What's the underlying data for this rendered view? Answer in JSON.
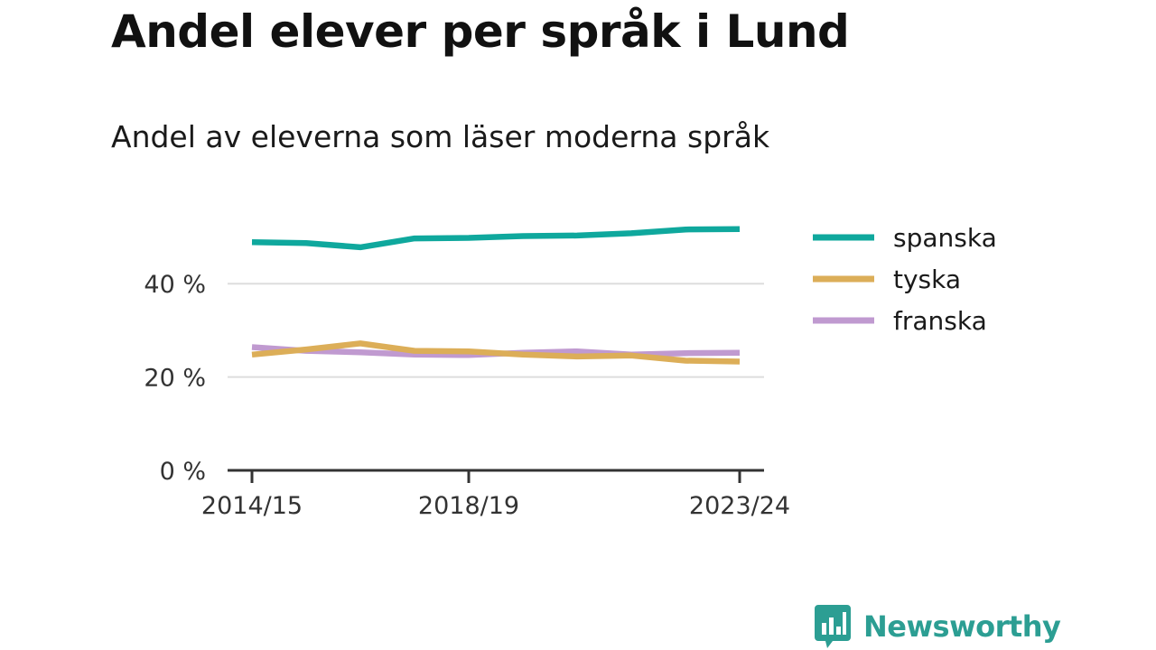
{
  "chart_data": {
    "type": "line",
    "title": "Andel elever per språk i Lund",
    "subtitle": "Andel av eleverna som läser moderna språk",
    "xlabel": "",
    "ylabel": "",
    "x": [
      "2014/15",
      "2015/16",
      "2016/17",
      "2017/18",
      "2018/19",
      "2019/20",
      "2020/21",
      "2021/22",
      "2022/23",
      "2023/24"
    ],
    "x_tick_labels": [
      "2014/15",
      "2018/19",
      "2023/24"
    ],
    "y_tick_labels": [
      "0 %",
      "20 %",
      "40 %"
    ],
    "y_ticks": [
      0,
      20,
      40
    ],
    "ylim": [
      0,
      50
    ],
    "grid": true,
    "legend_position": "right",
    "series": [
      {
        "name": "spanska",
        "color": "#0fa89d",
        "values": [
          48.9,
          48.7,
          47.8,
          49.7,
          49.8,
          50.2,
          50.3,
          50.8,
          51.6,
          51.7
        ]
      },
      {
        "name": "tyska",
        "color": "#dcae58",
        "values": [
          24.8,
          25.9,
          27.2,
          25.6,
          25.5,
          24.8,
          24.4,
          24.6,
          23.5,
          23.3
        ]
      },
      {
        "name": "franska",
        "color": "#c09ad0",
        "values": [
          26.4,
          25.6,
          25.3,
          24.8,
          24.7,
          25.2,
          25.5,
          24.8,
          25.1,
          25.2
        ]
      }
    ]
  },
  "brand": {
    "name": "Newsworthy",
    "icon": "newsworthy-logo-icon",
    "color": "#2c9e93"
  }
}
